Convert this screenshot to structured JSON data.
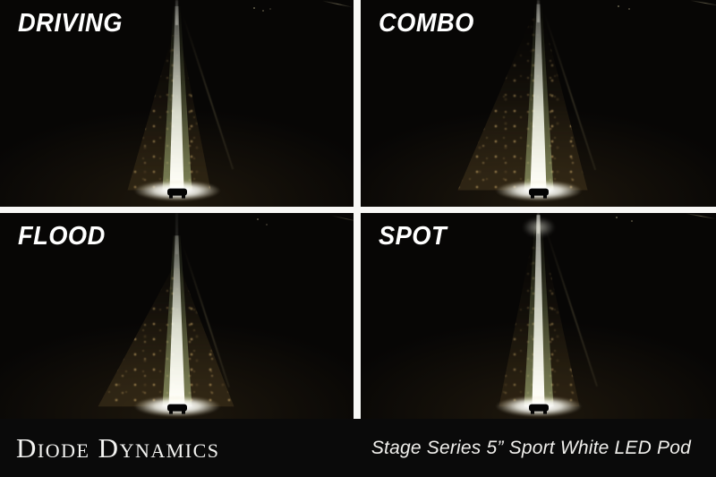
{
  "poster": {
    "quadrants": [
      {
        "id": "driving",
        "label": "DRIVING"
      },
      {
        "id": "combo",
        "label": "COMBO"
      },
      {
        "id": "flood",
        "label": "FLOOD"
      },
      {
        "id": "spot",
        "label": "SPOT"
      }
    ],
    "footer": {
      "brand": "Diode Dynamics",
      "product": "Stage Series 5” Sport White LED Pod"
    },
    "colors": {
      "photo_background": "#070605",
      "gutter_white": "#f8f8f6",
      "footer_background": "#0a0a0a",
      "beam_white": "#fffef8",
      "grass_green": "#aabf82",
      "vegetation_tan": "#8a7448",
      "label_text": "#ffffff"
    }
  }
}
